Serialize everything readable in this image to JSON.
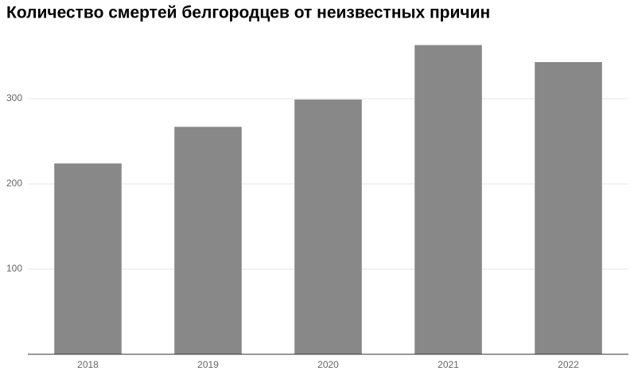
{
  "chart_data": {
    "type": "bar",
    "title": "Количество смертей белгородцев от неизвестных причин",
    "categories": [
      "2018",
      "2019",
      "2020",
      "2021",
      "2022"
    ],
    "values": [
      224,
      267,
      299,
      363,
      343
    ],
    "color": "#888888",
    "ylim": [
      0,
      380
    ],
    "yticks": [
      100,
      200,
      300
    ],
    "grid": true
  }
}
